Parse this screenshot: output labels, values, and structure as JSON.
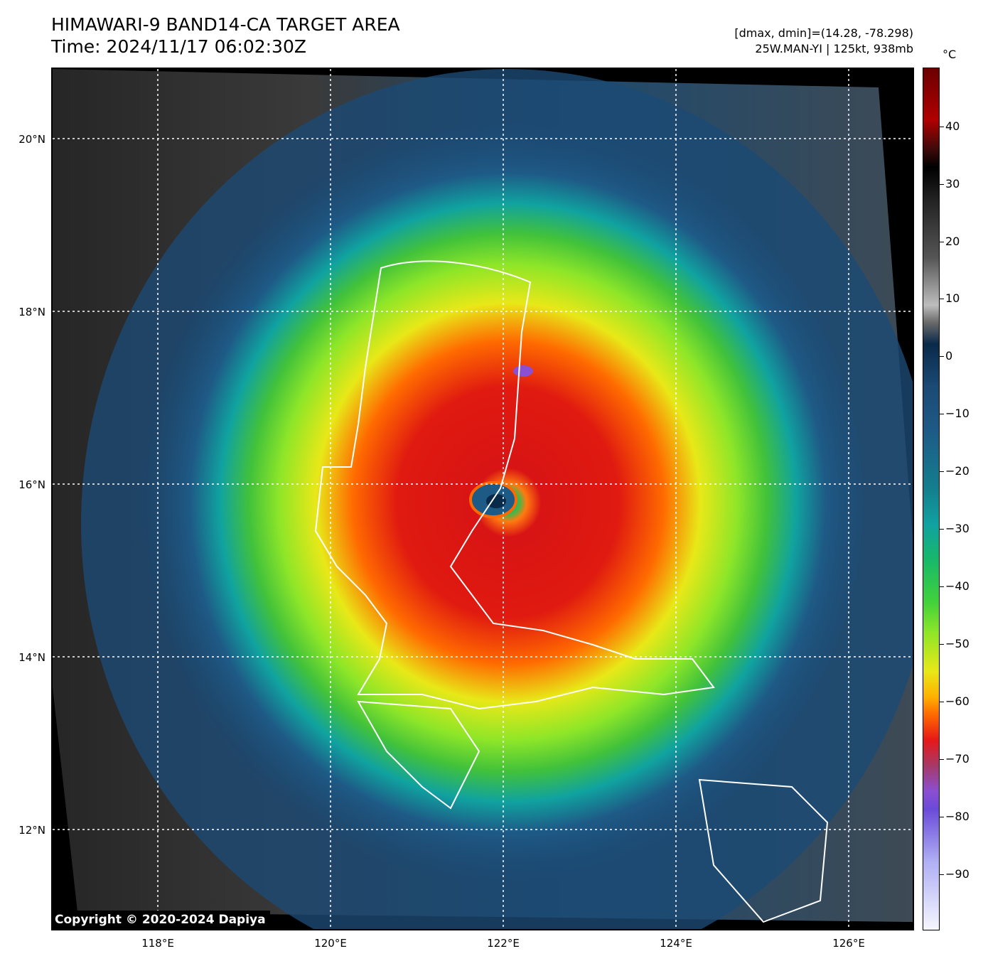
{
  "header": {
    "title_line1": "HIMAWARI-9 BAND14-CA TARGET AREA",
    "title_line2": "Time: 2024/11/17 06:02:30Z",
    "meta_line1": "[dmax, dmin]=(14.28, -78.298)",
    "meta_line2": "25W.MAN-YI | 125kt, 938mb"
  },
  "map": {
    "lat_labels": [
      "20°N",
      "18°N",
      "16°N",
      "14°N",
      "12°N"
    ],
    "lon_labels": [
      "118°E",
      "120°E",
      "122°E",
      "124°E",
      "126°E"
    ],
    "copyright": "Copyright © 2020-2024 Dapiya",
    "colors": {
      "cold_core": "#e61818",
      "eye_wall": "#ff6a00",
      "outer_band": "#42d23a",
      "ocean_clear": "#1e5a86",
      "land_line": "#ffffff"
    }
  },
  "colorbar": {
    "unit": "°C",
    "labels": [
      "40",
      "30",
      "20",
      "10",
      "0",
      "−10",
      "−20",
      "−30",
      "−40",
      "−50",
      "−60",
      "−70",
      "−80",
      "−90"
    ]
  }
}
